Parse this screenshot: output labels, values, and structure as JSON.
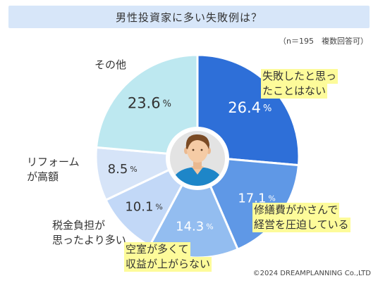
{
  "title": "男性投資家に多い失敗例は？",
  "note": "（n＝195　複数回答可）",
  "copyright": "©2024 DREAMPLANNING Co.,LTD",
  "colors": {
    "dark_blue": "#2e6fd8",
    "mid_blue": "#5f98e6",
    "light_blue": "#93bdf0",
    "pale_blue": "#c2d8f7",
    "lightest_blue": "#d6e4f8",
    "cyan": "#bde8f0",
    "highlight": "#fdfb9a",
    "title_bg": "#d7e6f9"
  },
  "chart_data": {
    "type": "pie",
    "title": "男性投資家に多い失敗例は？",
    "unit": "%",
    "slices": [
      {
        "label": "失敗したと思ったことはない",
        "label_lines": [
          "失敗したと思っ",
          "たことはない"
        ],
        "value": 26.4,
        "value_text": "26.4",
        "color": "#2e6fd8",
        "text_color": "#ffffff",
        "highlight": true
      },
      {
        "label": "修繕費がかさんで経営を圧迫している",
        "label_lines": [
          "修繕費がかさんで",
          "経営を圧迫している"
        ],
        "value": 17.1,
        "value_text": "17.1",
        "color": "#5f98e6",
        "text_color": "#ffffff",
        "highlight": true
      },
      {
        "label": "空室が多くて収益が上がらない",
        "label_lines": [
          "空室が多くて",
          "収益が上がらない"
        ],
        "value": 14.3,
        "value_text": "14.3",
        "color": "#93bdf0",
        "text_color": "#ffffff",
        "highlight": true
      },
      {
        "label": "税金負担が思ったより多い",
        "label_lines": [
          "税金負担が",
          "思ったより多い"
        ],
        "value": 10.1,
        "value_text": "10.1",
        "color": "#c2d8f7",
        "text_color": "#333333",
        "highlight": false
      },
      {
        "label": "リフォームが高額",
        "label_lines": [
          "リフォーム",
          "が高額"
        ],
        "value": 8.5,
        "value_text": "8.5",
        "color": "#d6e4f8",
        "text_color": "#333333",
        "highlight": false
      },
      {
        "label": "その他",
        "label_lines": [
          "その他"
        ],
        "value": 23.6,
        "value_text": "23.6",
        "color": "#bde8f0",
        "text_color": "#333333",
        "highlight": false
      }
    ]
  }
}
